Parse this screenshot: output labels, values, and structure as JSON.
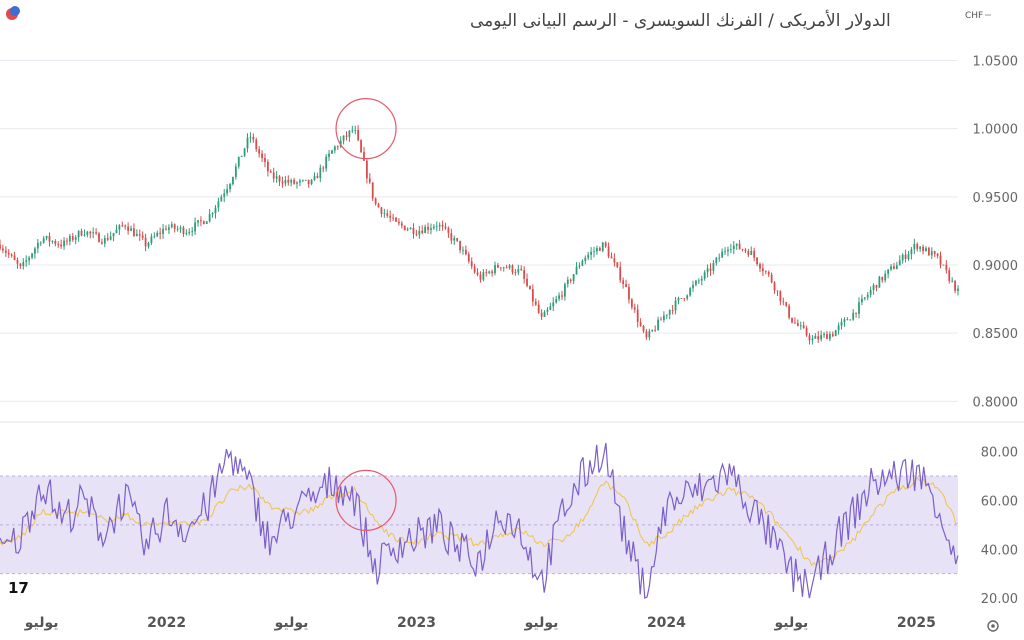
{
  "title": "الدولار الأمريكى / الفرنك السويسرى - الرسم البيانى اليومى",
  "currency_label": "CHF",
  "logo_text": "17",
  "colors": {
    "up": "#2e9c79",
    "down": "#d94c4c",
    "rsi_line": "#7b5fc9",
    "rsi_ma": "#f0c24a",
    "rsi_band": "#e8e2f7",
    "highlight_circle": "#e8586a",
    "grid": "#e9e9ef"
  },
  "chart_data": [
    {
      "type": "candlestick",
      "series": [
        {
          "name": "",
          "x": [
            "2021-05",
            "2021-06",
            "2021-07",
            "2021-08",
            "2021-09",
            "2021-10",
            "2021-11",
            "2021-12",
            "2022-01",
            "2022-02",
            "2022-03",
            "2022-04",
            "2022-05",
            "2022-06",
            "2022-07",
            "2022-08",
            "2022-09",
            "2022-10",
            "2022-11",
            "2022-12",
            "2023-01",
            "2023-02",
            "2023-03",
            "2023-04",
            "2023-05",
            "2023-06",
            "2023-07",
            "2023-08",
            "2023-09",
            "2023-10",
            "2023-11",
            "2023-12",
            "2024-01",
            "2024-02",
            "2024-03",
            "2024-04",
            "2024-05",
            "2024-06",
            "2024-07",
            "2024-08",
            "2024-09",
            "2024-10",
            "2024-11",
            "2024-12",
            "2025-01",
            "2025-02",
            "2025-03"
          ],
          "values": [
            0.915,
            0.897,
            0.92,
            0.915,
            0.925,
            0.918,
            0.93,
            0.915,
            0.928,
            0.925,
            0.935,
            0.96,
            0.995,
            0.965,
            0.96,
            0.96,
            0.985,
            1.0,
            0.945,
            0.93,
            0.925,
            0.93,
            0.915,
            0.89,
            0.9,
            0.895,
            0.86,
            0.88,
            0.905,
            0.915,
            0.885,
            0.845,
            0.865,
            0.88,
            0.895,
            0.915,
            0.91,
            0.89,
            0.86,
            0.845,
            0.85,
            0.865,
            0.885,
            0.9,
            0.915,
            0.905,
            0.88
          ]
        }
      ],
      "y_ticks": [
        "1.0500",
        "1.0000",
        "0.9500",
        "0.9000",
        "0.8500",
        "0.8000"
      ],
      "ylim": [
        0.79,
        1.065
      ]
    },
    {
      "type": "line",
      "series": [
        {
          "name": "",
          "x": [
            "2021-05",
            "2021-06",
            "2021-07",
            "2021-08",
            "2021-09",
            "2021-10",
            "2021-11",
            "2021-12",
            "2022-01",
            "2022-02",
            "2022-03",
            "2022-04",
            "2022-05",
            "2022-06",
            "2022-07",
            "2022-08",
            "2022-09",
            "2022-10",
            "2022-11",
            "2022-12",
            "2023-01",
            "2023-02",
            "2023-03",
            "2023-04",
            "2023-05",
            "2023-06",
            "2023-07",
            "2023-08",
            "2023-09",
            "2023-10",
            "2023-11",
            "2023-12",
            "2024-01",
            "2024-02",
            "2024-03",
            "2024-04",
            "2024-05",
            "2024-06",
            "2024-07",
            "2024-08",
            "2024-09",
            "2024-10",
            "2024-11",
            "2024-12",
            "2025-01",
            "2025-02",
            "2025-03"
          ],
          "values": [
            38,
            45,
            68,
            52,
            60,
            46,
            62,
            40,
            55,
            48,
            58,
            80,
            65,
            42,
            55,
            60,
            68,
            62,
            32,
            42,
            45,
            50,
            40,
            35,
            56,
            48,
            26,
            55,
            70,
            82,
            45,
            22,
            58,
            62,
            66,
            72,
            58,
            45,
            30,
            24,
            42,
            55,
            68,
            70,
            72,
            60,
            32
          ]
        },
        {
          "name": "",
          "x": [
            "2021-05",
            "2021-06",
            "2021-07",
            "2021-08",
            "2021-09",
            "2021-10",
            "2021-11",
            "2021-12",
            "2022-01",
            "2022-02",
            "2022-03",
            "2022-04",
            "2022-05",
            "2022-06",
            "2022-07",
            "2022-08",
            "2022-09",
            "2022-10",
            "2022-11",
            "2022-12",
            "2023-01",
            "2023-02",
            "2023-03",
            "2023-04",
            "2023-05",
            "2023-06",
            "2023-07",
            "2023-08",
            "2023-09",
            "2023-10",
            "2023-11",
            "2023-12",
            "2024-01",
            "2024-02",
            "2024-03",
            "2024-04",
            "2024-05",
            "2024-06",
            "2024-07",
            "2024-08",
            "2024-09",
            "2024-10",
            "2024-11",
            "2024-12",
            "2025-01",
            "2025-02",
            "2025-03"
          ],
          "values": [
            42,
            45,
            55,
            55,
            55,
            52,
            54,
            50,
            51,
            50,
            53,
            63,
            66,
            58,
            55,
            56,
            62,
            64,
            52,
            44,
            43,
            46,
            45,
            42,
            46,
            48,
            42,
            44,
            52,
            68,
            60,
            42,
            46,
            54,
            60,
            64,
            62,
            54,
            44,
            34,
            36,
            44,
            56,
            64,
            68,
            66,
            50
          ]
        }
      ],
      "y_ticks": [
        "80.00",
        "60.00",
        "40.00",
        "20.00"
      ],
      "ylim": [
        18,
        88
      ],
      "bands": [
        30,
        70
      ]
    }
  ],
  "x_axis_labels": [
    "يوليو",
    "2022",
    "يوليو",
    "2023",
    "يوليو",
    "2024",
    "يوليو",
    "2025"
  ],
  "x_axis_label_dates": [
    "2021-07",
    "2022-01",
    "2022-07",
    "2023-01",
    "2023-07",
    "2024-01",
    "2024-07",
    "2025-01"
  ],
  "highlights": [
    {
      "panel": "price",
      "date": "2022-10",
      "value": 1.0
    },
    {
      "panel": "rsi",
      "date": "2022-10",
      "value": 60
    }
  ]
}
